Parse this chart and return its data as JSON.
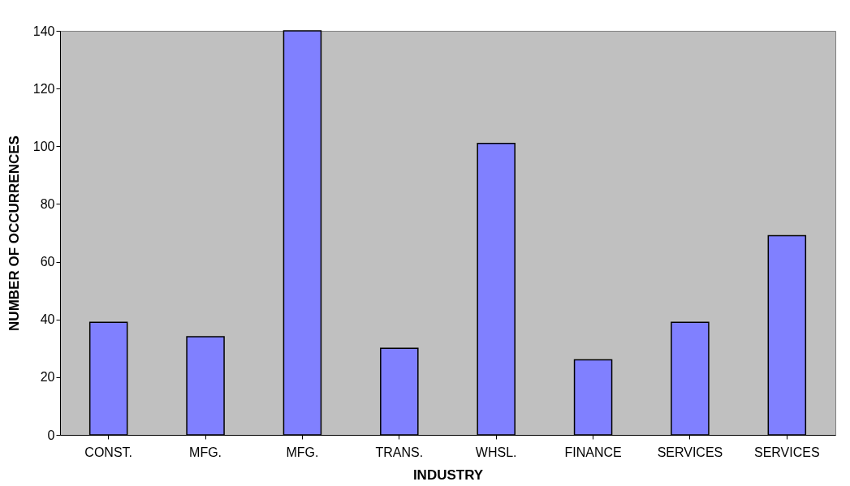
{
  "chart_data": {
    "type": "bar",
    "xlabel": "INDUSTRY",
    "ylabel": "NUMBER OF OCCURRENCES",
    "categories": [
      "CONST.",
      "MFG.",
      "MFG.",
      "TRANS.",
      "WHSL.",
      "FINANCE",
      "SERVICES",
      "SERVICES"
    ],
    "values": [
      39,
      34,
      140,
      30,
      101,
      26,
      39,
      69
    ],
    "color": "#8080ff",
    "ylim": [
      0,
      140
    ],
    "yticks": [
      0,
      20,
      40,
      60,
      80,
      100,
      120,
      140
    ],
    "grid": false
  }
}
